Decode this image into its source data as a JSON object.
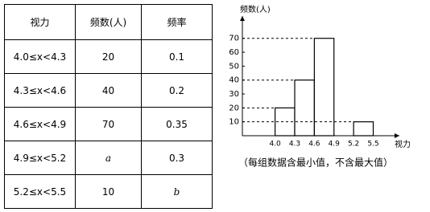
{
  "table": {
    "header": [
      "视力",
      "频数(人)",
      "频率"
    ],
    "rows": [
      [
        "4.0≤x<4.3",
        20,
        0.1
      ],
      [
        "4.3≤x<4.6",
        40,
        0.2
      ],
      [
        "4.6≤x<4.9",
        70,
        0.35
      ],
      [
        "4.9≤x<5.2",
        "a",
        0.3
      ],
      [
        "5.2≤x<5.5",
        10,
        "b"
      ]
    ]
  },
  "chart_data": {
    "type": "histogram",
    "y_label": "频数(人)",
    "x_label": "视力",
    "caption": "（每组数据含最小值，不含最大值）",
    "bins": [
      4,
      4.3,
      4.6,
      4.9,
      5.2,
      5.5
    ],
    "counts": [
      20,
      40,
      70,
      null,
      10
    ],
    "color": "#ffffff",
    "xlim": [
      3.5,
      5.9
    ],
    "ylim": [
      0,
      86
    ],
    "xticks": [
      {
        "value": 4,
        "label": "4.0"
      },
      4.3,
      4.6,
      4.9,
      5.2,
      5.5
    ],
    "yticks": [
      10,
      20,
      30,
      40,
      50,
      60,
      70
    ],
    "grid": false
  }
}
